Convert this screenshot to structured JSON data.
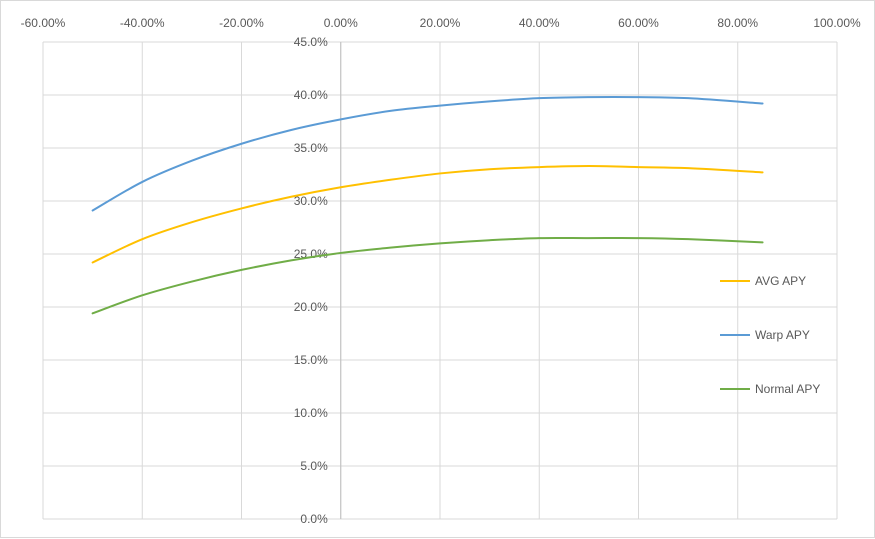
{
  "chart_data": {
    "type": "line",
    "title": "",
    "xlabel": "",
    "ylabel": "",
    "xlim": [
      -0.6,
      1.0
    ],
    "ylim": [
      0,
      0.45
    ],
    "x_ticks": [
      -0.6,
      -0.4,
      -0.2,
      0.0,
      0.2,
      0.4,
      0.6,
      0.8,
      1.0
    ],
    "x_tick_labels": [
      "-60.00%",
      "-40.00%",
      "-20.00%",
      "0.00%",
      "20.00%",
      "40.00%",
      "60.00%",
      "80.00%",
      "100.00%"
    ],
    "y_ticks": [
      0,
      0.05,
      0.1,
      0.15,
      0.2,
      0.25,
      0.3,
      0.35,
      0.4,
      0.45
    ],
    "y_tick_labels": [
      "0.0%",
      "5.0%",
      "10.0%",
      "15.0%",
      "20.0%",
      "25.0%",
      "30.0%",
      "35.0%",
      "40.0%",
      "45.0%"
    ],
    "x_axis_position": "top",
    "grid": true,
    "legend_position": "right",
    "series": [
      {
        "name": "AVG APY",
        "color": "#ffc000",
        "x": [
          -0.5,
          -0.4,
          -0.3,
          -0.2,
          -0.1,
          0.0,
          0.1,
          0.2,
          0.3,
          0.4,
          0.5,
          0.6,
          0.7,
          0.85
        ],
        "y": [
          0.242,
          0.264,
          0.28,
          0.293,
          0.304,
          0.313,
          0.32,
          0.326,
          0.33,
          0.332,
          0.333,
          0.332,
          0.331,
          0.327
        ]
      },
      {
        "name": "Warp APY",
        "color": "#5b9bd5",
        "x": [
          -0.5,
          -0.4,
          -0.3,
          -0.2,
          -0.1,
          0.0,
          0.1,
          0.2,
          0.3,
          0.4,
          0.5,
          0.6,
          0.7,
          0.85
        ],
        "y": [
          0.291,
          0.318,
          0.338,
          0.354,
          0.367,
          0.377,
          0.385,
          0.39,
          0.394,
          0.397,
          0.398,
          0.398,
          0.397,
          0.392
        ]
      },
      {
        "name": "Normal APY",
        "color": "#70ad47",
        "x": [
          -0.5,
          -0.4,
          -0.3,
          -0.2,
          -0.1,
          0.0,
          0.1,
          0.2,
          0.3,
          0.4,
          0.5,
          0.6,
          0.7,
          0.85
        ],
        "y": [
          0.194,
          0.211,
          0.224,
          0.235,
          0.244,
          0.251,
          0.256,
          0.26,
          0.263,
          0.265,
          0.265,
          0.265,
          0.264,
          0.261
        ]
      }
    ]
  }
}
